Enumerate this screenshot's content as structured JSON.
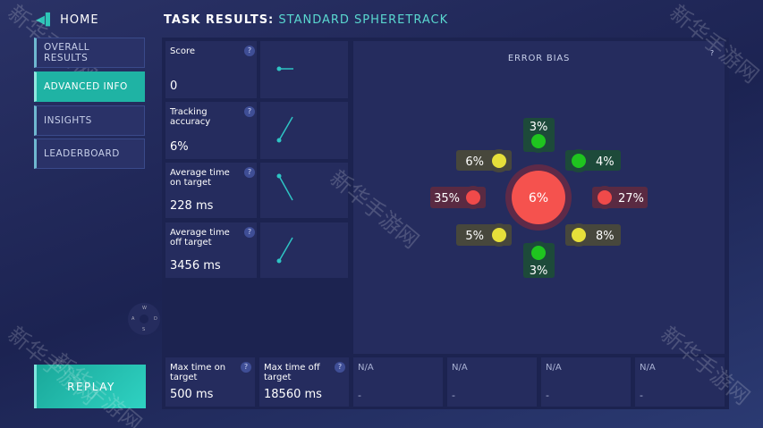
{
  "nav": {
    "back": "HOME",
    "title_prefix": "TASK RESULTS:",
    "title": "STANDARD SPHERETRACK"
  },
  "sidebar": [
    "OVERALL RESULTS",
    "ADVANCED INFO",
    "INSIGHTS",
    "LEADERBOARD"
  ],
  "active_item": 1,
  "replay": "REPLAY",
  "compass": [
    "W",
    "A",
    "D",
    "S"
  ],
  "help": "?",
  "stats": [
    {
      "label": "Score",
      "value": "0"
    },
    {
      "label": "Tracking accuracy",
      "value": "6%"
    },
    {
      "label": "Average time on target",
      "value": "228 ms"
    },
    {
      "label": "Average time off target",
      "value": "3456 ms"
    }
  ],
  "bottom_stats": [
    {
      "label": "Max time on target",
      "value": "500 ms"
    },
    {
      "label": "Max time off target",
      "value": "18560 ms"
    },
    {
      "label": "N/A",
      "value": "-"
    },
    {
      "label": "N/A",
      "value": "-"
    },
    {
      "label": "N/A",
      "value": "-"
    },
    {
      "label": "N/A",
      "value": "-"
    }
  ],
  "error_bias": {
    "title": "ERROR BIAS",
    "center": "6%",
    "center_color": "#f5524e",
    "directions": [
      {
        "label": "3%",
        "color": "#1fc41f"
      },
      {
        "label": "4%",
        "color": "#1fc41f"
      },
      {
        "label": "27%",
        "color": "#f04a4a"
      },
      {
        "label": "8%",
        "color": "#e6df3a"
      },
      {
        "label": "3%",
        "color": "#1fc41f"
      },
      {
        "label": "5%",
        "color": "#e6df3a"
      },
      {
        "label": "35%",
        "color": "#f04a4a"
      },
      {
        "label": "6%",
        "color": "#e6df3a"
      }
    ]
  },
  "watermark": "新华手游网"
}
